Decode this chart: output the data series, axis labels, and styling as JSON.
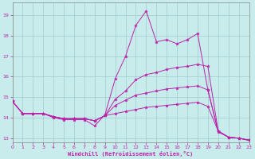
{
  "xlabel": "Windchill (Refroidissement éolien,°C)",
  "xlim": [
    0,
    23
  ],
  "ylim": [
    12.8,
    19.6
  ],
  "yticks": [
    13,
    14,
    15,
    16,
    17,
    18,
    19
  ],
  "xticks": [
    0,
    1,
    2,
    3,
    4,
    5,
    6,
    7,
    8,
    9,
    10,
    11,
    12,
    13,
    14,
    15,
    16,
    17,
    18,
    19,
    20,
    21,
    22,
    23
  ],
  "background_color": "#c8ecec",
  "grid_color": "#a0cccc",
  "line_color": "#bb22aa",
  "lines": [
    [
      14.8,
      14.2,
      14.2,
      14.2,
      14.0,
      13.9,
      13.9,
      13.9,
      13.6,
      14.15,
      15.9,
      17.0,
      18.5,
      19.2,
      17.7,
      17.8,
      17.6,
      17.8,
      18.1,
      15.35,
      13.3,
      13.05,
      13.0,
      12.9
    ],
    [
      14.8,
      14.2,
      14.2,
      14.2,
      14.05,
      13.95,
      13.95,
      13.95,
      13.85,
      14.1,
      14.9,
      15.3,
      15.85,
      16.1,
      16.2,
      16.35,
      16.45,
      16.5,
      16.6,
      16.5,
      13.35,
      13.05,
      13.0,
      12.9
    ],
    [
      14.8,
      14.2,
      14.2,
      14.2,
      14.05,
      13.95,
      13.95,
      13.95,
      13.85,
      14.1,
      14.6,
      14.85,
      15.1,
      15.2,
      15.3,
      15.4,
      15.45,
      15.5,
      15.55,
      15.35,
      13.35,
      13.05,
      13.0,
      12.9
    ],
    [
      14.8,
      14.2,
      14.2,
      14.2,
      14.05,
      13.95,
      13.95,
      13.95,
      13.85,
      14.1,
      14.2,
      14.3,
      14.4,
      14.5,
      14.55,
      14.6,
      14.65,
      14.7,
      14.75,
      14.55,
      13.35,
      13.05,
      13.0,
      12.9
    ]
  ]
}
